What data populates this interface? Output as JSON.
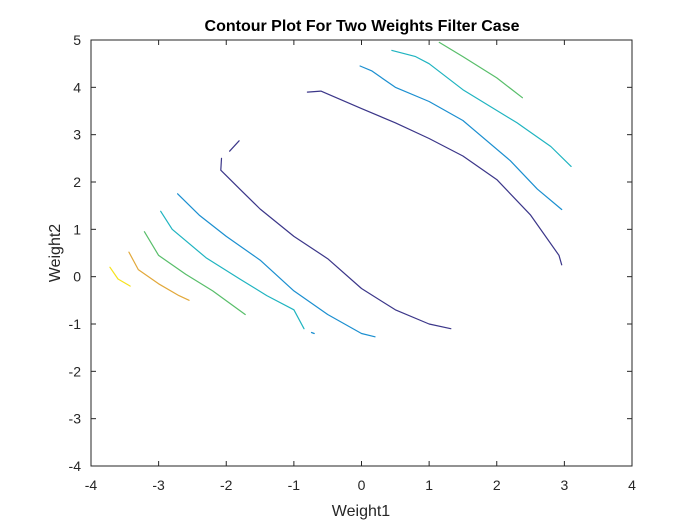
{
  "chart_data": {
    "type": "contour",
    "title": "Contour Plot For Two Weights Filter Case",
    "xlabel": "Weight1",
    "ylabel": "Weight2",
    "xlim": [
      -4,
      4
    ],
    "ylim": [
      -4,
      5
    ],
    "xticks": [
      -4,
      -3,
      -2,
      -1,
      0,
      1,
      2,
      3,
      4
    ],
    "yticks": [
      -4,
      -3,
      -2,
      -1,
      0,
      1,
      2,
      3,
      4,
      5
    ],
    "grid": false,
    "box": true,
    "contour_lines": [
      {
        "level_index": 1,
        "color": "#3b3689",
        "segments": [
          [
            [
              -1.81,
              2.87
            ],
            [
              -1.95,
              2.65
            ]
          ],
          [
            [
              -2.07,
              2.5
            ],
            [
              -2.08,
              2.25
            ],
            [
              -1.8,
              1.85
            ],
            [
              -1.5,
              1.43
            ],
            [
              -1.0,
              0.85
            ],
            [
              -0.5,
              0.38
            ],
            [
              0.0,
              -0.25
            ],
            [
              0.5,
              -0.7
            ],
            [
              1.0,
              -1.0
            ],
            [
              1.32,
              -1.1
            ]
          ],
          [
            [
              2.96,
              0.25
            ],
            [
              2.92,
              0.45
            ],
            [
              2.5,
              1.3
            ],
            [
              2.0,
              2.05
            ],
            [
              1.5,
              2.55
            ],
            [
              1.0,
              2.92
            ],
            [
              0.5,
              3.25
            ],
            [
              0.0,
              3.55
            ],
            [
              -0.6,
              3.92
            ],
            [
              -0.8,
              3.9
            ]
          ]
        ]
      },
      {
        "level_index": 2,
        "color": "#1b8fd0",
        "segments": [
          [
            [
              -2.72,
              1.75
            ],
            [
              -2.4,
              1.3
            ],
            [
              -2.0,
              0.85
            ],
            [
              -1.5,
              0.35
            ],
            [
              -1.0,
              -0.3
            ],
            [
              -0.5,
              -0.8
            ],
            [
              0.0,
              -1.2
            ],
            [
              0.2,
              -1.27
            ]
          ],
          [
            [
              -0.74,
              -1.18
            ],
            [
              -0.7,
              -1.2
            ]
          ],
          [
            [
              2.96,
              1.42
            ],
            [
              2.6,
              1.85
            ],
            [
              2.2,
              2.45
            ],
            [
              1.5,
              3.3
            ],
            [
              1.0,
              3.7
            ],
            [
              0.5,
              4.0
            ],
            [
              0.15,
              4.35
            ],
            [
              -0.02,
              4.45
            ]
          ]
        ]
      },
      {
        "level_index": 3,
        "color": "#1fb4c0",
        "segments": [
          [
            [
              -2.97,
              1.38
            ],
            [
              -2.8,
              1.0
            ],
            [
              -2.3,
              0.4
            ],
            [
              -1.8,
              -0.05
            ],
            [
              -1.4,
              -0.4
            ],
            [
              -1.0,
              -0.7
            ],
            [
              -0.85,
              -1.1
            ]
          ],
          [
            [
              3.1,
              2.33
            ],
            [
              2.8,
              2.75
            ],
            [
              2.3,
              3.25
            ],
            [
              1.5,
              3.95
            ],
            [
              1.0,
              4.5
            ],
            [
              0.8,
              4.65
            ],
            [
              0.45,
              4.78
            ]
          ]
        ]
      },
      {
        "level_index": 4,
        "color": "#58be6a",
        "segments": [
          [
            [
              -3.21,
              0.95
            ],
            [
              -3.0,
              0.45
            ],
            [
              -2.6,
              0.05
            ],
            [
              -2.2,
              -0.3
            ],
            [
              -1.72,
              -0.8
            ]
          ],
          [
            [
              2.38,
              3.78
            ],
            [
              2.0,
              4.2
            ],
            [
              1.5,
              4.65
            ],
            [
              1.15,
              4.95
            ]
          ]
        ]
      },
      {
        "level_index": 5,
        "color": "#e2a83a",
        "segments": [
          [
            [
              -3.44,
              0.52
            ],
            [
              -3.3,
              0.15
            ],
            [
              -3.0,
              -0.15
            ],
            [
              -2.7,
              -0.4
            ],
            [
              -2.55,
              -0.5
            ]
          ]
        ]
      },
      {
        "level_index": 6,
        "color": "#f6e21d",
        "segments": [
          [
            [
              -3.72,
              0.2
            ],
            [
              -3.6,
              -0.05
            ],
            [
              -3.42,
              -0.2
            ]
          ]
        ]
      }
    ]
  }
}
